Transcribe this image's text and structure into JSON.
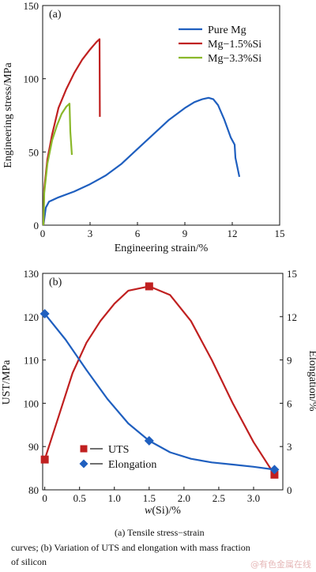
{
  "chart_data": [
    {
      "type": "line",
      "panel_label": "(a)",
      "xlabel": "Engineering strain/%",
      "ylabel": "Engineering stress/MPa",
      "xlim": [
        0,
        15
      ],
      "ylim": [
        0,
        150
      ],
      "xticks": [
        "0",
        "3",
        "6",
        "9",
        "12",
        "15"
      ],
      "yticks": [
        "0",
        "50",
        "100",
        "150"
      ],
      "legend_position": "top-right",
      "series": [
        {
          "name": "Pure Mg",
          "color": "#1f5fbf",
          "points": [
            [
              0.05,
              0
            ],
            [
              0.2,
              12
            ],
            [
              0.4,
              16
            ],
            [
              1,
              19
            ],
            [
              2,
              23
            ],
            [
              3,
              28
            ],
            [
              4,
              34
            ],
            [
              5,
              42
            ],
            [
              6,
              52
            ],
            [
              7,
              62
            ],
            [
              8,
              72
            ],
            [
              9,
              80
            ],
            [
              9.6,
              84
            ],
            [
              10.1,
              86
            ],
            [
              10.5,
              87
            ],
            [
              10.8,
              86
            ],
            [
              11.1,
              82
            ],
            [
              11.5,
              72
            ],
            [
              11.9,
              60
            ],
            [
              12.15,
              55
            ],
            [
              12.2,
              46
            ],
            [
              12.45,
              33
            ]
          ]
        },
        {
          "name": "Mg−1.5%Si",
          "color": "#c02020",
          "points": [
            [
              0.05,
              0
            ],
            [
              0.1,
              25
            ],
            [
              0.3,
              45
            ],
            [
              0.6,
              62
            ],
            [
              1,
              80
            ],
            [
              1.5,
              93
            ],
            [
              2,
              104
            ],
            [
              2.5,
              113
            ],
            [
              3,
              120
            ],
            [
              3.4,
              125
            ],
            [
              3.6,
              127
            ],
            [
              3.62,
              74
            ]
          ]
        },
        {
          "name": "Mg−3.3%Si",
          "color": "#8ab82a",
          "points": [
            [
              0.05,
              0
            ],
            [
              0.1,
              22
            ],
            [
              0.3,
              42
            ],
            [
              0.6,
              58
            ],
            [
              0.9,
              68
            ],
            [
              1.2,
              76
            ],
            [
              1.5,
              81
            ],
            [
              1.7,
              83
            ],
            [
              1.75,
              64
            ],
            [
              1.85,
              48
            ]
          ]
        }
      ]
    },
    {
      "type": "line",
      "panel_label": "(b)",
      "xlabel_prefix": "w",
      "xlabel_rest": "(Si)/%",
      "ylabel": "UST/MPa",
      "y2label": "Elongation/%",
      "xlim": [
        0,
        3.3
      ],
      "ylim": [
        80,
        130
      ],
      "y2lim": [
        0,
        15
      ],
      "xticks": [
        "0",
        "0.5",
        "1.0",
        "1.5",
        "2.0",
        "2.5",
        "3.0"
      ],
      "yticks": [
        "80",
        "90",
        "100",
        "110",
        "120",
        "130"
      ],
      "y2ticks": [
        "0",
        "3",
        "6",
        "9",
        "12",
        "15"
      ],
      "legend_position": "bottom-left",
      "series": [
        {
          "name": "UTS",
          "axis": "left",
          "color": "#c02020",
          "marker": "square",
          "markers": [
            [
              0,
              87
            ],
            [
              1.5,
              127
            ],
            [
              3.3,
              83.5
            ]
          ],
          "curve": [
            [
              0,
              87
            ],
            [
              0.2,
              97
            ],
            [
              0.4,
              107
            ],
            [
              0.6,
              114
            ],
            [
              0.8,
              119
            ],
            [
              1.0,
              123
            ],
            [
              1.2,
              126
            ],
            [
              1.5,
              127
            ],
            [
              1.8,
              125
            ],
            [
              2.1,
              119
            ],
            [
              2.4,
              110
            ],
            [
              2.7,
              100
            ],
            [
              3.0,
              91
            ],
            [
              3.3,
              83.5
            ]
          ]
        },
        {
          "name": "Elongation",
          "axis": "right",
          "color": "#1f5fbf",
          "marker": "diamond",
          "markers": [
            [
              0,
              12.2
            ],
            [
              1.5,
              3.4
            ],
            [
              3.3,
              1.4
            ]
          ],
          "curve": [
            [
              0,
              12.2
            ],
            [
              0.3,
              10.4
            ],
            [
              0.6,
              8.3
            ],
            [
              0.9,
              6.3
            ],
            [
              1.2,
              4.6
            ],
            [
              1.5,
              3.4
            ],
            [
              1.8,
              2.6
            ],
            [
              2.1,
              2.15
            ],
            [
              2.4,
              1.9
            ],
            [
              2.7,
              1.75
            ],
            [
              3.0,
              1.6
            ],
            [
              3.3,
              1.4
            ]
          ]
        }
      ]
    }
  ],
  "caption": {
    "line1": "(a)  Tensile  stress−strain",
    "line2": "curves; (b) Variation of UTS and elongation with mass fraction",
    "line3": "of silicon"
  },
  "watermark": "@有色金属在线"
}
